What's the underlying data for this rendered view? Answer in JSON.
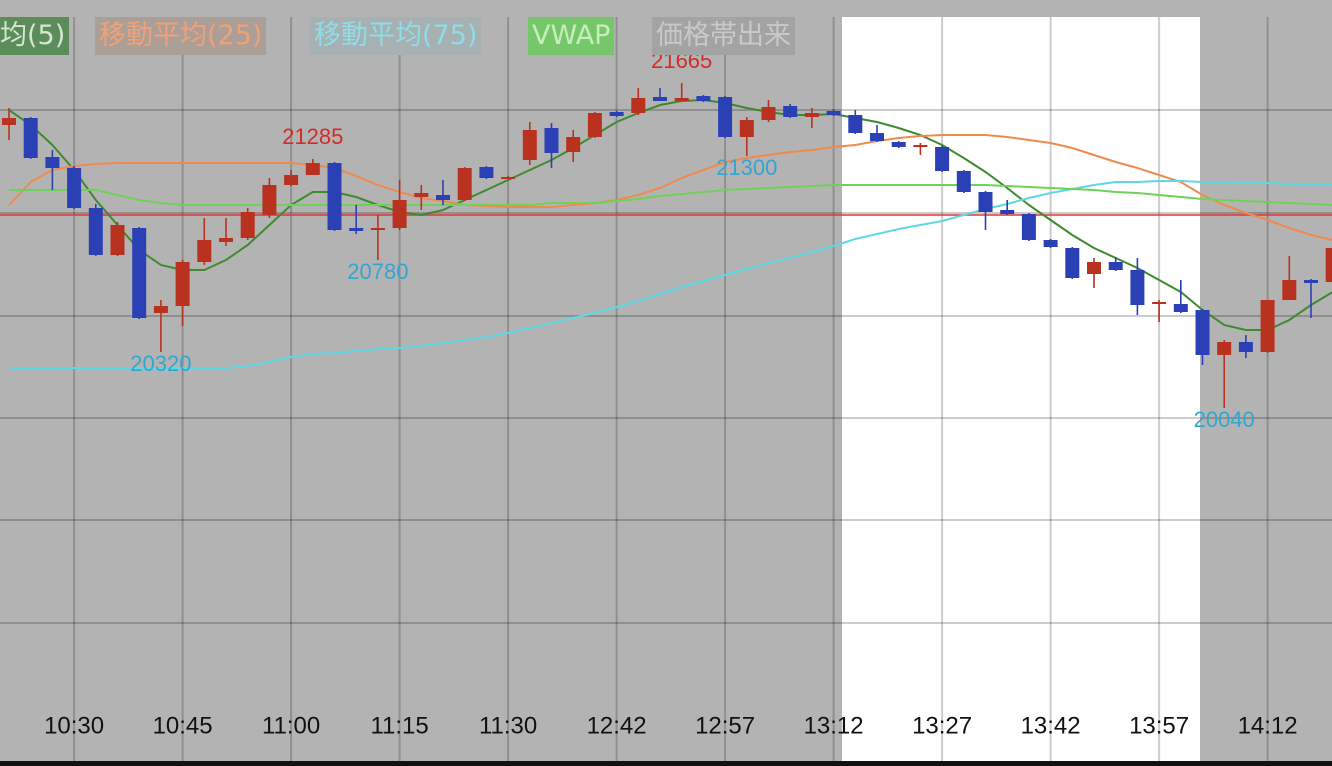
{
  "chart_data": {
    "type": "candlestick",
    "categories": [
      null,
      null,
      null,
      "10:30",
      null,
      null,
      null,
      null,
      "10:45",
      null,
      null,
      null,
      null,
      "11:00",
      null,
      null,
      null,
      null,
      "11:15",
      null,
      null,
      null,
      null,
      "11:30",
      null,
      null,
      null,
      null,
      "12:42",
      null,
      null,
      null,
      null,
      "12:57",
      null,
      null,
      null,
      null,
      "13:12",
      null,
      null,
      null,
      null,
      "13:27",
      null,
      null,
      null,
      null,
      "13:42",
      null,
      null,
      null,
      null,
      "13:57",
      null,
      null,
      null,
      null,
      "14:12",
      null,
      null,
      null
    ],
    "open": [
      21455,
      21490,
      21295,
      21240,
      21040,
      20805,
      20940,
      20515,
      20550,
      20770,
      20870,
      20890,
      21005,
      21155,
      21205,
      21265,
      20940,
      20930,
      20940,
      21095,
      21105,
      21080,
      21245,
      21190,
      21280,
      21440,
      21320,
      21395,
      21520,
      21515,
      21595,
      21575,
      21600,
      21595,
      21395,
      21480,
      21550,
      21495,
      21525,
      21505,
      21415,
      21370,
      21345,
      21345,
      21225,
      21120,
      21030,
      21010,
      20880,
      20840,
      20710,
      20770,
      20730,
      20560,
      20560,
      20530,
      20305,
      20370,
      20320,
      20580,
      20680,
      20670
    ],
    "high": [
      21540,
      21495,
      21330,
      21250,
      21060,
      20970,
      20945,
      20580,
      20780,
      20990,
      20990,
      21040,
      21190,
      21230,
      21285,
      21270,
      21055,
      21005,
      21180,
      21155,
      21180,
      21245,
      21250,
      21200,
      21470,
      21465,
      21430,
      21520,
      21525,
      21640,
      21640,
      21665,
      21605,
      21600,
      21495,
      21580,
      21560,
      21540,
      21535,
      21530,
      21455,
      21375,
      21365,
      21350,
      21230,
      21125,
      21080,
      21015,
      20885,
      20845,
      20790,
      20795,
      20790,
      20580,
      20680,
      20535,
      20380,
      20405,
      20580,
      20800,
      20685,
      20850
    ],
    "low": [
      21380,
      21285,
      21130,
      21035,
      20800,
      20800,
      20485,
      20320,
      20450,
      20755,
      20850,
      20880,
      20990,
      21150,
      21205,
      20925,
      20910,
      20780,
      20930,
      21030,
      21055,
      21075,
      21185,
      21185,
      21255,
      21240,
      21270,
      21390,
      21495,
      21505,
      21575,
      21575,
      21570,
      21390,
      21300,
      21470,
      21490,
      21440,
      21500,
      21410,
      21370,
      21340,
      21305,
      21220,
      21115,
      20930,
      21005,
      20875,
      20840,
      20685,
      20640,
      20725,
      20505,
      20470,
      20515,
      20255,
      20040,
      20290,
      20315,
      20580,
      20490,
      20660
    ],
    "close": [
      21490,
      21290,
      21240,
      21040,
      20805,
      20955,
      20490,
      20550,
      20770,
      20880,
      20890,
      21020,
      21155,
      21205,
      21265,
      20930,
      20925,
      20940,
      21080,
      21115,
      21080,
      21240,
      21190,
      21195,
      21430,
      21315,
      21395,
      21515,
      21500,
      21590,
      21575,
      21590,
      21575,
      21395,
      21480,
      21545,
      21495,
      21515,
      21505,
      21415,
      21375,
      21345,
      21355,
      21225,
      21120,
      21020,
      21010,
      20880,
      20845,
      20690,
      20770,
      20730,
      20555,
      20570,
      20520,
      20305,
      20370,
      20320,
      20580,
      20680,
      20665,
      20840
    ],
    "up_color": "#b8321f",
    "down_color": "#2a40b4",
    "labeled_highs": [
      14,
      31
    ],
    "labeled_lows": [
      7,
      17,
      34,
      56
    ],
    "high_label_color": "#d42a2a",
    "low_label_color": "#33a6d0",
    "series": [
      {
        "name": "均(5)",
        "color": "#3f8a2e",
        "values": [
          21530,
          21455,
          21355,
          21230,
          21080,
          20955,
          20830,
          20755,
          20730,
          20730,
          20780,
          20855,
          20955,
          21055,
          21120,
          21120,
          21095,
          21055,
          21020,
          21005,
          21030,
          21080,
          21130,
          21180,
          21230,
          21280,
          21340,
          21405,
          21470,
          21515,
          21555,
          21575,
          21580,
          21565,
          21540,
          21520,
          21505,
          21505,
          21510,
          21490,
          21470,
          21440,
          21405,
          21355,
          21290,
          21220,
          21140,
          21055,
          20980,
          20905,
          20840,
          20790,
          20740,
          20680,
          20620,
          20530,
          20455,
          20430,
          20430,
          20480,
          20555,
          20620
        ]
      },
      {
        "name": "移動平均(25)",
        "color": "#ef8a4e",
        "values": [
          21055,
          21170,
          21230,
          21250,
          21260,
          21265,
          21265,
          21265,
          21265,
          21265,
          21265,
          21265,
          21265,
          21265,
          21255,
          21240,
          21200,
          21155,
          21120,
          21090,
          21075,
          21055,
          21050,
          21045,
          21045,
          21045,
          21055,
          21065,
          21080,
          21105,
          21140,
          21190,
          21230,
          21270,
          21290,
          21305,
          21320,
          21330,
          21345,
          21355,
          21375,
          21390,
          21400,
          21405,
          21405,
          21405,
          21395,
          21380,
          21365,
          21340,
          21305,
          21270,
          21240,
          21205,
          21170,
          21105,
          21055,
          21015,
          20980,
          20940,
          20905,
          20880
        ]
      },
      {
        "name": "移動平均(75)",
        "color": "#5fd8e6",
        "values": [
          20240,
          20240,
          20240,
          20240,
          20240,
          20240,
          20240,
          20240,
          20240,
          20240,
          20240,
          20250,
          20270,
          20295,
          20310,
          20315,
          20325,
          20335,
          20340,
          20350,
          20365,
          20380,
          20395,
          20415,
          20440,
          20465,
          20490,
          20515,
          20545,
          20575,
          20610,
          20645,
          20675,
          20705,
          20735,
          20765,
          20790,
          20820,
          20850,
          20885,
          20910,
          20935,
          20955,
          20975,
          21005,
          21035,
          21060,
          21090,
          21115,
          21135,
          21155,
          21170,
          21170,
          21175,
          21175,
          21170,
          21170,
          21165,
          21165,
          21160,
          21160,
          21155
        ]
      },
      {
        "name": "VWAP",
        "color": "#6fd05a",
        "values": [
          21130,
          21130,
          21130,
          21130,
          21130,
          21105,
          21080,
          21065,
          21055,
          21055,
          21055,
          21055,
          21055,
          21055,
          21055,
          21055,
          21055,
          21055,
          21055,
          21055,
          21055,
          21055,
          21055,
          21055,
          21055,
          21065,
          21065,
          21065,
          21075,
          21085,
          21100,
          21110,
          21120,
          21130,
          21135,
          21140,
          21145,
          21150,
          21155,
          21155,
          21155,
          21155,
          21155,
          21155,
          21155,
          21155,
          21150,
          21145,
          21140,
          21135,
          21130,
          21120,
          21115,
          21105,
          21095,
          21085,
          21080,
          21075,
          21070,
          21065,
          21060,
          21055
        ]
      }
    ],
    "legend_extra": "価格帯出来",
    "reference_line": {
      "value": 21005,
      "color": "#e03434"
    },
    "ylim": [
      18630,
      22080
    ],
    "grid": true
  }
}
